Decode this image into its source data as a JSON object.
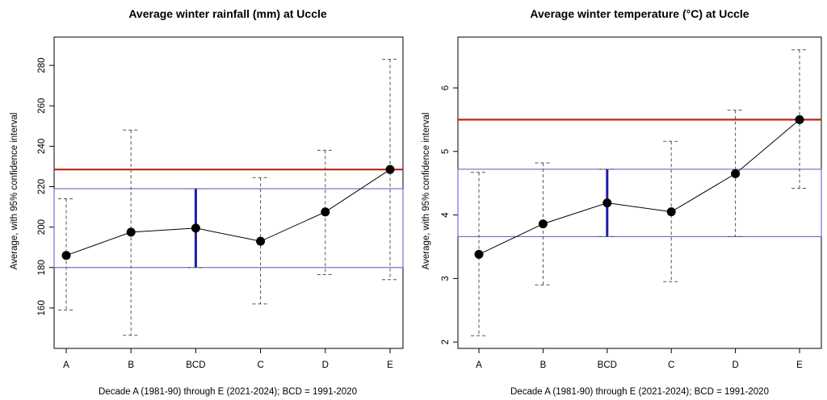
{
  "chart_data": [
    {
      "type": "scatter",
      "title": "Average winter rainfall (mm) at Uccle",
      "xlabel": "Decade A (1981-90) through E (2021-2024); BCD = 1991-2020",
      "ylabel": "Average, with 95% confidence interval",
      "categories": [
        "A",
        "B",
        "BCD",
        "C",
        "D",
        "E"
      ],
      "ylim": [
        140,
        294
      ],
      "yticks": [
        160,
        180,
        200,
        220,
        240,
        260,
        280
      ],
      "means": [
        186,
        197.5,
        199.5,
        193,
        207.5,
        228.5
      ],
      "lower": [
        159,
        146.5,
        180,
        162,
        176.5,
        174
      ],
      "upper": [
        214,
        248,
        219,
        224.5,
        238,
        283
      ],
      "line_series": [
        "A",
        "B",
        "C",
        "D",
        "E"
      ],
      "reference_line": 228.5,
      "reference_band": [
        180,
        219
      ],
      "colors": {
        "reference_line": "#c0221b",
        "band": "#5555cc",
        "bcd_interval": "#1c1ca8",
        "points": "#000000"
      },
      "grid": false
    },
    {
      "type": "scatter",
      "title": "Average winter temperature (°C) at Uccle",
      "xlabel": "Decade A (1981-90) through E (2021-2024); BCD = 1991-2020",
      "ylabel": "Average, with 95% confidence interval",
      "categories": [
        "A",
        "B",
        "BCD",
        "C",
        "D",
        "E"
      ],
      "ylim": [
        1.9,
        6.8
      ],
      "yticks": [
        2,
        3,
        4,
        5,
        6
      ],
      "means": [
        3.38,
        3.86,
        4.19,
        4.05,
        4.65,
        5.5
      ],
      "lower": [
        2.1,
        2.9,
        3.66,
        2.95,
        3.66,
        4.42
      ],
      "upper": [
        4.67,
        4.82,
        4.72,
        5.16,
        5.65,
        6.6
      ],
      "line_series": [
        "A",
        "B",
        "C",
        "D",
        "E"
      ],
      "reference_line": 5.5,
      "reference_band": [
        3.66,
        4.72
      ],
      "colors": {
        "reference_line": "#c0221b",
        "band": "#5555cc",
        "bcd_interval": "#1c1ca8",
        "points": "#000000"
      },
      "grid": false
    }
  ]
}
